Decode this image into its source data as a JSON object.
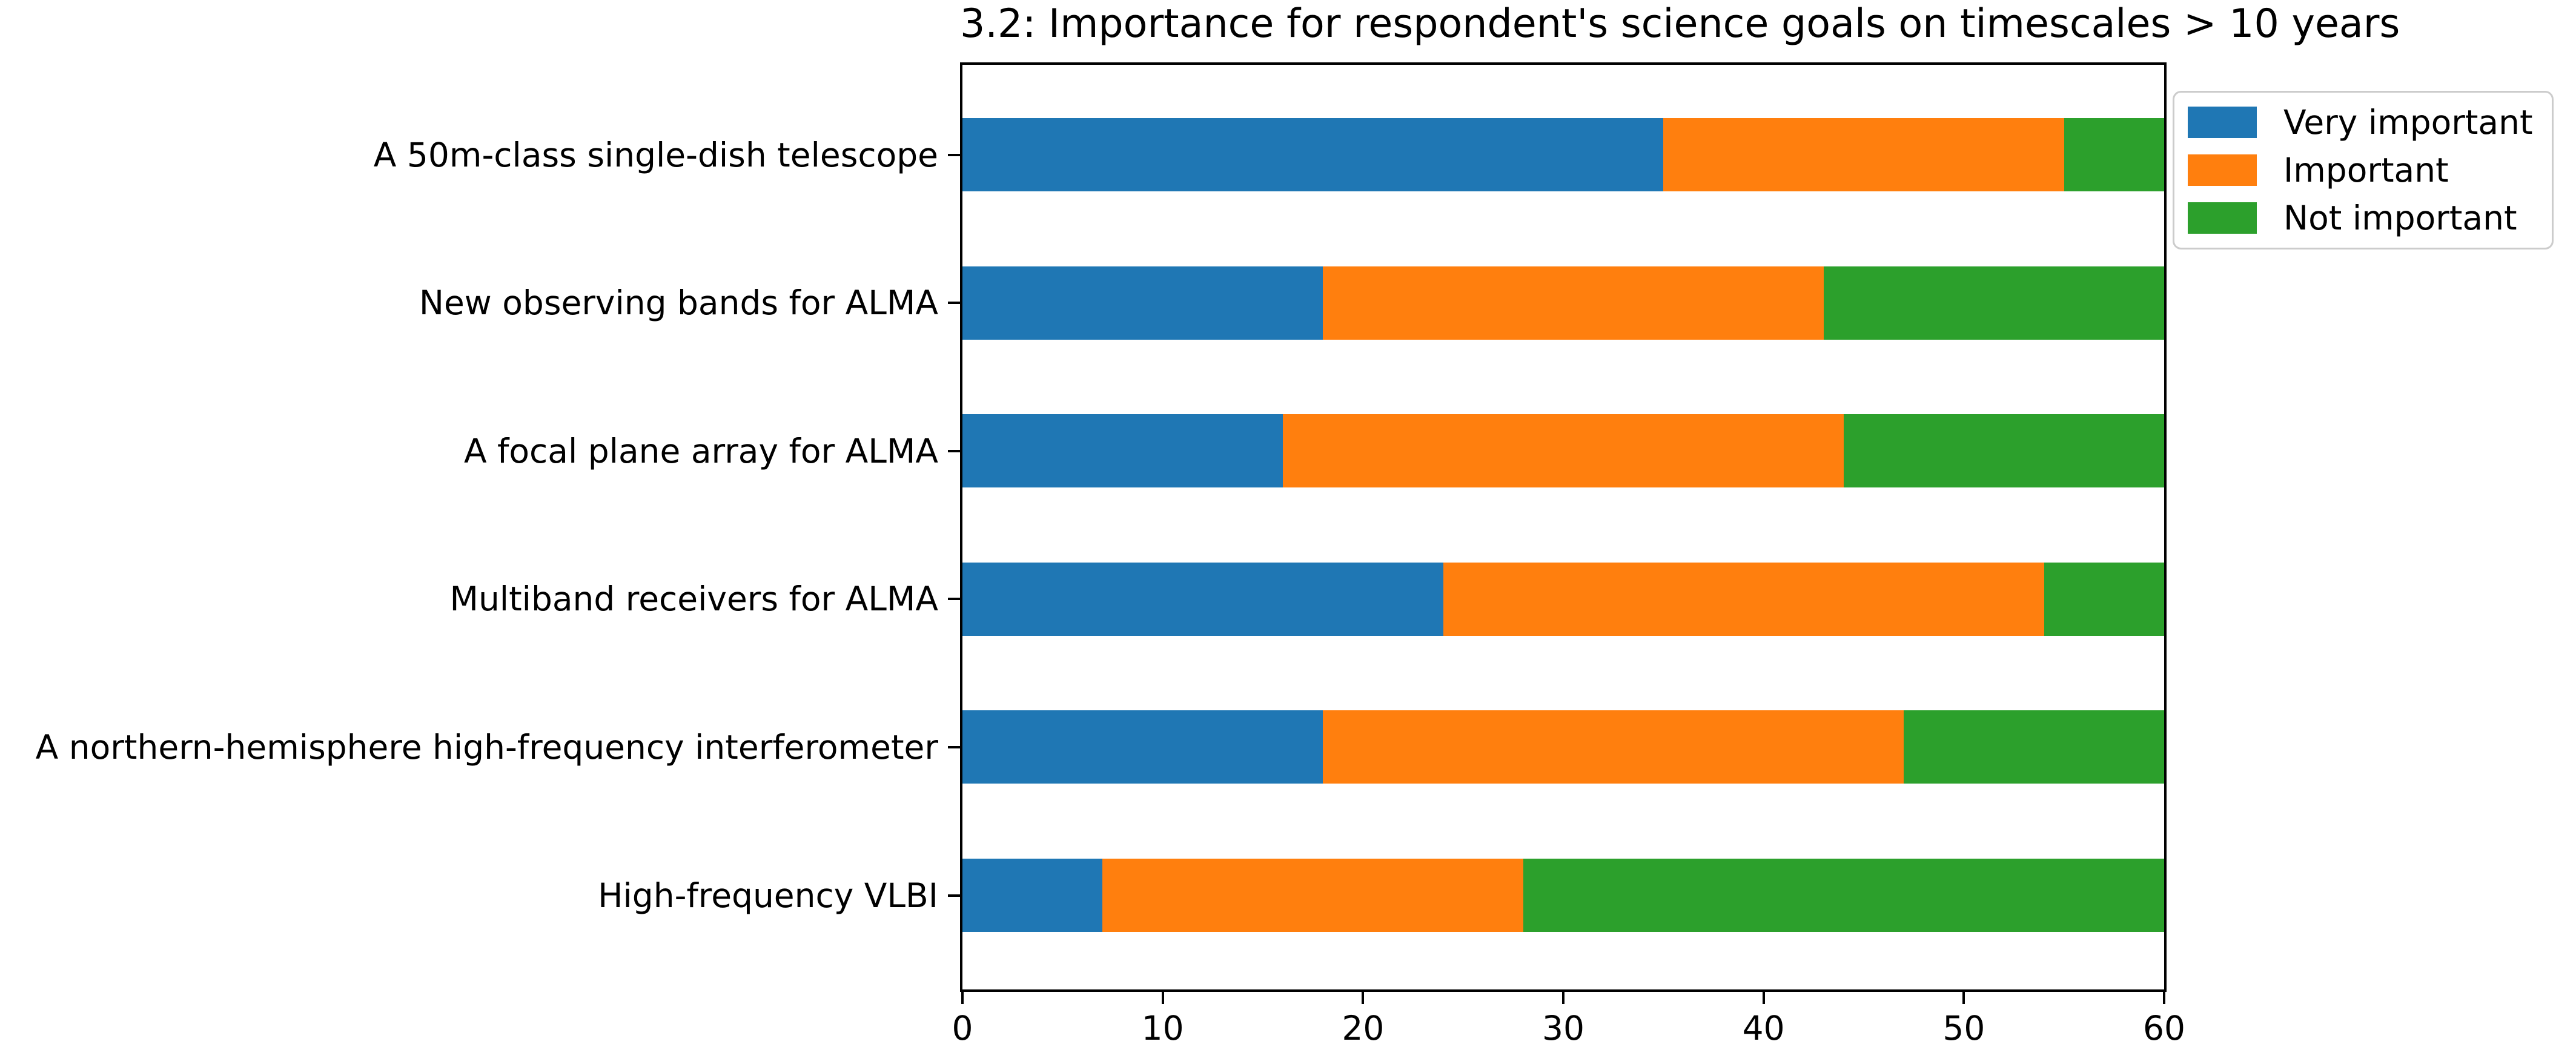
{
  "title": "3.2: Importance for respondent's science goals on timescales > 10 years",
  "legend": {
    "entries": [
      {
        "label": "Very important",
        "color": "#1f77b4"
      },
      {
        "label": "Important",
        "color": "#ff7f0e"
      },
      {
        "label": "Not important",
        "color": "#2ca02c"
      }
    ],
    "position": "upper right",
    "frame_color": "#cccccc"
  },
  "axis": {
    "x_tick_labels": [
      "0",
      "10",
      "20",
      "30",
      "40",
      "50",
      "60"
    ]
  },
  "chart_data": {
    "type": "bar",
    "orientation": "horizontal",
    "stacked": true,
    "title": "3.2: Importance for respondent's science goals on timescales > 10 years",
    "categories": [
      "A 50m-class single-dish telescope",
      "New observing bands for ALMA",
      "A focal plane array for ALMA",
      "Multiband receivers for ALMA",
      "A northern-hemisphere high-frequency interferometer",
      "High-frequency VLBI"
    ],
    "series": [
      {
        "name": "Very important",
        "color": "#1f77b4",
        "values": [
          35,
          18,
          16,
          24,
          18,
          7
        ]
      },
      {
        "name": "Important",
        "color": "#ff7f0e",
        "values": [
          20,
          25,
          28,
          30,
          29,
          21
        ]
      },
      {
        "name": "Not important",
        "color": "#2ca02c",
        "values": [
          5,
          17,
          16,
          6,
          13,
          32
        ]
      }
    ],
    "xlabel": "",
    "ylabel": "",
    "xlim": [
      0,
      60
    ],
    "x_ticks": [
      0,
      10,
      20,
      30,
      40,
      50,
      60
    ],
    "grid": false,
    "legend_position": "upper right"
  }
}
